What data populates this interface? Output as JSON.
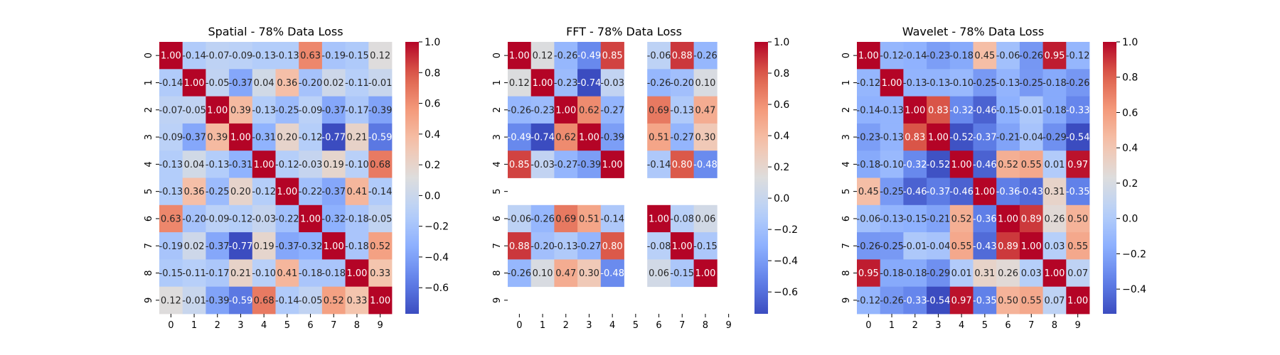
{
  "chart_data": [
    {
      "type": "heatmap",
      "title": "Spatial - 78% Data Loss",
      "x_ticks": [
        "0",
        "1",
        "2",
        "3",
        "4",
        "5",
        "6",
        "7",
        "8",
        "9"
      ],
      "y_ticks": [
        "0",
        "1",
        "2",
        "3",
        "4",
        "5",
        "6",
        "7",
        "8",
        "9"
      ],
      "colorbar": {
        "min": -0.77,
        "max": 1.0,
        "ticks": [
          1.0,
          0.8,
          0.6,
          0.4,
          0.2,
          0.0,
          -0.2,
          -0.4,
          -0.6
        ]
      },
      "matrix": [
        [
          1.0,
          -0.14,
          -0.07,
          -0.09,
          -0.13,
          -0.13,
          0.63,
          -0.19,
          -0.15,
          0.12
        ],
        [
          -0.14,
          1.0,
          -0.05,
          -0.37,
          0.04,
          0.36,
          -0.2,
          0.02,
          -0.11,
          -0.01
        ],
        [
          -0.07,
          -0.05,
          1.0,
          0.39,
          -0.13,
          -0.25,
          -0.09,
          -0.37,
          -0.17,
          -0.39
        ],
        [
          -0.09,
          -0.37,
          0.39,
          1.0,
          -0.31,
          0.2,
          -0.12,
          -0.77,
          0.21,
          -0.59
        ],
        [
          -0.13,
          0.04,
          -0.13,
          -0.31,
          1.0,
          -0.12,
          -0.03,
          0.19,
          -0.1,
          0.68
        ],
        [
          -0.13,
          0.36,
          -0.25,
          0.2,
          -0.12,
          1.0,
          -0.22,
          -0.37,
          0.41,
          -0.14
        ],
        [
          0.63,
          -0.2,
          -0.09,
          -0.12,
          -0.03,
          -0.22,
          1.0,
          -0.32,
          -0.18,
          -0.05
        ],
        [
          -0.19,
          0.02,
          -0.37,
          -0.77,
          0.19,
          -0.37,
          -0.32,
          1.0,
          -0.18,
          0.52
        ],
        [
          -0.15,
          -0.11,
          -0.17,
          0.21,
          -0.1,
          0.41,
          -0.18,
          -0.18,
          1.0,
          0.33
        ],
        [
          0.12,
          -0.01,
          -0.39,
          -0.59,
          0.68,
          -0.14,
          -0.05,
          0.52,
          0.33,
          1.0
        ]
      ]
    },
    {
      "type": "heatmap",
      "title": "FFT - 78% Data Loss",
      "x_ticks": [
        "0",
        "1",
        "2",
        "3",
        "4",
        "5",
        "6",
        "7",
        "8",
        "9"
      ],
      "y_ticks": [
        "0",
        "1",
        "2",
        "3",
        "4",
        "5",
        "6",
        "7",
        "8",
        "9"
      ],
      "colorbar": {
        "min": -0.74,
        "max": 1.0,
        "ticks": [
          1.0,
          0.8,
          0.6,
          0.4,
          0.2,
          0.0,
          -0.2,
          -0.4,
          -0.6
        ]
      },
      "matrix": [
        [
          1.0,
          0.12,
          -0.26,
          -0.49,
          0.85,
          null,
          -0.06,
          0.88,
          -0.26,
          null
        ],
        [
          0.12,
          1.0,
          -0.23,
          -0.74,
          -0.03,
          null,
          -0.26,
          -0.2,
          0.1,
          null
        ],
        [
          -0.26,
          -0.23,
          1.0,
          0.62,
          -0.27,
          null,
          0.69,
          -0.13,
          0.47,
          null
        ],
        [
          -0.49,
          -0.74,
          0.62,
          1.0,
          -0.39,
          null,
          0.51,
          -0.27,
          0.3,
          null
        ],
        [
          0.85,
          -0.03,
          -0.27,
          -0.39,
          1.0,
          null,
          -0.14,
          0.8,
          -0.48,
          null
        ],
        [
          null,
          null,
          null,
          null,
          null,
          null,
          null,
          null,
          null,
          null
        ],
        [
          -0.06,
          -0.26,
          0.69,
          0.51,
          -0.14,
          null,
          1.0,
          -0.08,
          0.06,
          null
        ],
        [
          0.88,
          -0.2,
          -0.13,
          -0.27,
          0.8,
          null,
          -0.08,
          1.0,
          -0.15,
          null
        ],
        [
          -0.26,
          0.1,
          0.47,
          0.3,
          -0.48,
          null,
          0.06,
          -0.15,
          1.0,
          null
        ],
        [
          null,
          null,
          null,
          null,
          null,
          null,
          null,
          null,
          null,
          null
        ]
      ]
    },
    {
      "type": "heatmap",
      "title": "Wavelet - 78% Data Loss",
      "x_ticks": [
        "0",
        "1",
        "2",
        "3",
        "4",
        "5",
        "6",
        "7",
        "8",
        "9"
      ],
      "y_ticks": [
        "0",
        "1",
        "2",
        "3",
        "4",
        "5",
        "6",
        "7",
        "8",
        "9"
      ],
      "colorbar": {
        "min": -0.54,
        "max": 1.0,
        "ticks": [
          1.0,
          0.8,
          0.6,
          0.4,
          0.2,
          0.0,
          -0.2,
          -0.4
        ]
      },
      "matrix": [
        [
          1.0,
          -0.12,
          -0.14,
          -0.23,
          -0.18,
          0.45,
          -0.06,
          -0.26,
          0.95,
          -0.12
        ],
        [
          -0.12,
          1.0,
          -0.13,
          -0.13,
          -0.1,
          -0.25,
          -0.13,
          -0.25,
          -0.18,
          -0.26
        ],
        [
          -0.14,
          -0.13,
          1.0,
          0.83,
          -0.32,
          -0.46,
          -0.15,
          -0.01,
          -0.18,
          -0.33
        ],
        [
          -0.23,
          -0.13,
          0.83,
          1.0,
          -0.52,
          -0.37,
          -0.21,
          -0.04,
          -0.29,
          -0.54
        ],
        [
          -0.18,
          -0.1,
          -0.32,
          -0.52,
          1.0,
          -0.46,
          0.52,
          0.55,
          0.01,
          0.97
        ],
        [
          0.45,
          -0.25,
          -0.46,
          -0.37,
          -0.46,
          1.0,
          -0.36,
          -0.43,
          0.31,
          -0.35
        ],
        [
          -0.06,
          -0.13,
          -0.15,
          -0.21,
          0.52,
          -0.36,
          1.0,
          0.89,
          0.26,
          0.5
        ],
        [
          -0.26,
          -0.25,
          -0.01,
          -0.04,
          0.55,
          -0.43,
          0.89,
          1.0,
          0.03,
          0.55
        ],
        [
          0.95,
          -0.18,
          -0.18,
          -0.29,
          0.01,
          0.31,
          0.26,
          0.03,
          1.0,
          0.07
        ],
        [
          -0.12,
          -0.26,
          -0.33,
          -0.54,
          0.97,
          -0.35,
          0.5,
          0.55,
          0.07,
          1.0
        ]
      ]
    }
  ]
}
